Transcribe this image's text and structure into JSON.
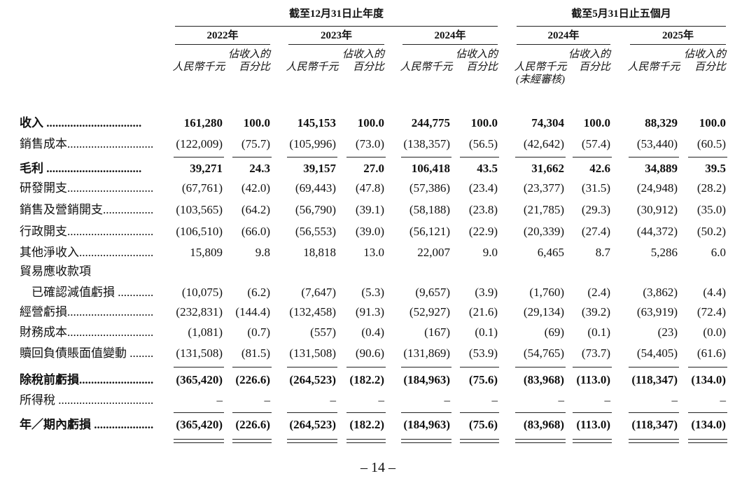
{
  "header": {
    "groups": [
      {
        "title": "截至12月31日止年度",
        "years": [
          "2022年",
          "2023年",
          "2024年"
        ]
      },
      {
        "title": "截至5月31日止五個月",
        "years": [
          "2024年",
          "2025年"
        ]
      }
    ],
    "columns": [
      {
        "amount": [
          "人民幣千元"
        ],
        "percent": [
          "佔收入的",
          "百分比"
        ]
      },
      {
        "amount": [
          "人民幣千元"
        ],
        "percent": [
          "佔收入的",
          "百分比"
        ]
      },
      {
        "amount": [
          "人民幣千元"
        ],
        "percent": [
          "佔收入的",
          "百分比"
        ]
      },
      {
        "amount": [
          "人民幣千元",
          "(未經審核)"
        ],
        "percent": [
          "佔收入的",
          "百分比"
        ]
      },
      {
        "amount": [
          "人民幣千元"
        ],
        "percent": [
          "佔收入的",
          "百分比"
        ]
      }
    ]
  },
  "rows": [
    {
      "label": [
        "收入 ................................"
      ],
      "bold": true,
      "values": [
        "161,280",
        "100.0",
        "145,153",
        "100.0",
        "244,775",
        "100.0",
        "74,304",
        "100.0",
        "88,329",
        "100.0"
      ]
    },
    {
      "label": [
        "銷售成本................................"
      ],
      "bold": false,
      "values": [
        "(122,009)",
        "(75.7)",
        "(105,996)",
        "(73.0)",
        "(138,357)",
        "(56.5)",
        "(42,642)",
        "(57.4)",
        "(53,440)",
        "(60.5)"
      ]
    },
    {
      "label": [
        "毛利 ................................"
      ],
      "bold": true,
      "values": [
        "39,271",
        "24.3",
        "39,157",
        "27.0",
        "106,418",
        "43.5",
        "31,662",
        "42.6",
        "34,889",
        "39.5"
      ]
    },
    {
      "label": [
        "研發開支................................"
      ],
      "bold": false,
      "values": [
        "(67,761)",
        "(42.0)",
        "(69,443)",
        "(47.8)",
        "(57,386)",
        "(23.4)",
        "(23,377)",
        "(31.5)",
        "(24,948)",
        "(28.2)"
      ]
    },
    {
      "label": [
        "銷售及營銷開支................................"
      ],
      "bold": false,
      "values": [
        "(103,565)",
        "(64.2)",
        "(56,790)",
        "(39.1)",
        "(58,188)",
        "(23.8)",
        "(21,785)",
        "(29.3)",
        "(30,912)",
        "(35.0)"
      ]
    },
    {
      "label": [
        "行政開支................................"
      ],
      "bold": false,
      "values": [
        "(106,510)",
        "(66.0)",
        "(56,553)",
        "(39.0)",
        "(56,121)",
        "(22.9)",
        "(20,339)",
        "(27.4)",
        "(44,372)",
        "(50.2)"
      ]
    },
    {
      "label": [
        "其他淨收入................................"
      ],
      "bold": false,
      "values": [
        "15,809",
        "9.8",
        "18,818",
        "13.0",
        "22,007",
        "9.0",
        "6,465",
        "8.7",
        "5,286",
        "6.0"
      ]
    },
    {
      "label": [
        "貿易應收款項",
        "　已確認減值虧損 ......................"
      ],
      "bold": false,
      "values": [
        "(10,075)",
        "(6.2)",
        "(7,647)",
        "(5.3)",
        "(9,657)",
        "(3.9)",
        "(1,760)",
        "(2.4)",
        "(3,862)",
        "(4.4)"
      ]
    },
    {
      "label": [
        "經營虧損................................"
      ],
      "bold": false,
      "values": [
        "(232,831)",
        "(144.4)",
        "(132,458)",
        "(91.3)",
        "(52,927)",
        "(21.6)",
        "(29,134)",
        "(39.2)",
        "(63,919)",
        "(72.4)"
      ]
    },
    {
      "label": [
        "財務成本................................"
      ],
      "bold": false,
      "values": [
        "(1,081)",
        "(0.7)",
        "(557)",
        "(0.4)",
        "(167)",
        "(0.1)",
        "(69)",
        "(0.1)",
        "(23)",
        "(0.0)"
      ]
    },
    {
      "label": [
        "贖回負債賬面值變動 ......................"
      ],
      "bold": false,
      "values": [
        "(131,508)",
        "(81.5)",
        "(131,508)",
        "(90.6)",
        "(131,869)",
        "(53.9)",
        "(54,765)",
        "(73.7)",
        "(54,405)",
        "(61.6)"
      ]
    },
    {
      "label": [
        "除稅前虧損................................"
      ],
      "bold": true,
      "values": [
        "(365,420)",
        "(226.6)",
        "(264,523)",
        "(182.2)",
        "(184,963)",
        "(75.6)",
        "(83,968)",
        "(113.0)",
        "(118,347)",
        "(134.0)"
      ]
    },
    {
      "label": [
        "所得稅 ................................"
      ],
      "bold": false,
      "values": [
        "–",
        "–",
        "–",
        "–",
        "–",
        "–",
        "–",
        "–",
        "–",
        "–"
      ]
    },
    {
      "label": [
        "年／期內虧損 ................................"
      ],
      "bold": true,
      "values": [
        "(365,420)",
        "(226.6)",
        "(264,523)",
        "(182.2)",
        "(184,963)",
        "(75.6)",
        "(83,968)",
        "(113.0)",
        "(118,347)",
        "(134.0)"
      ]
    }
  ],
  "footer": {
    "page_number": "– 14 –"
  }
}
